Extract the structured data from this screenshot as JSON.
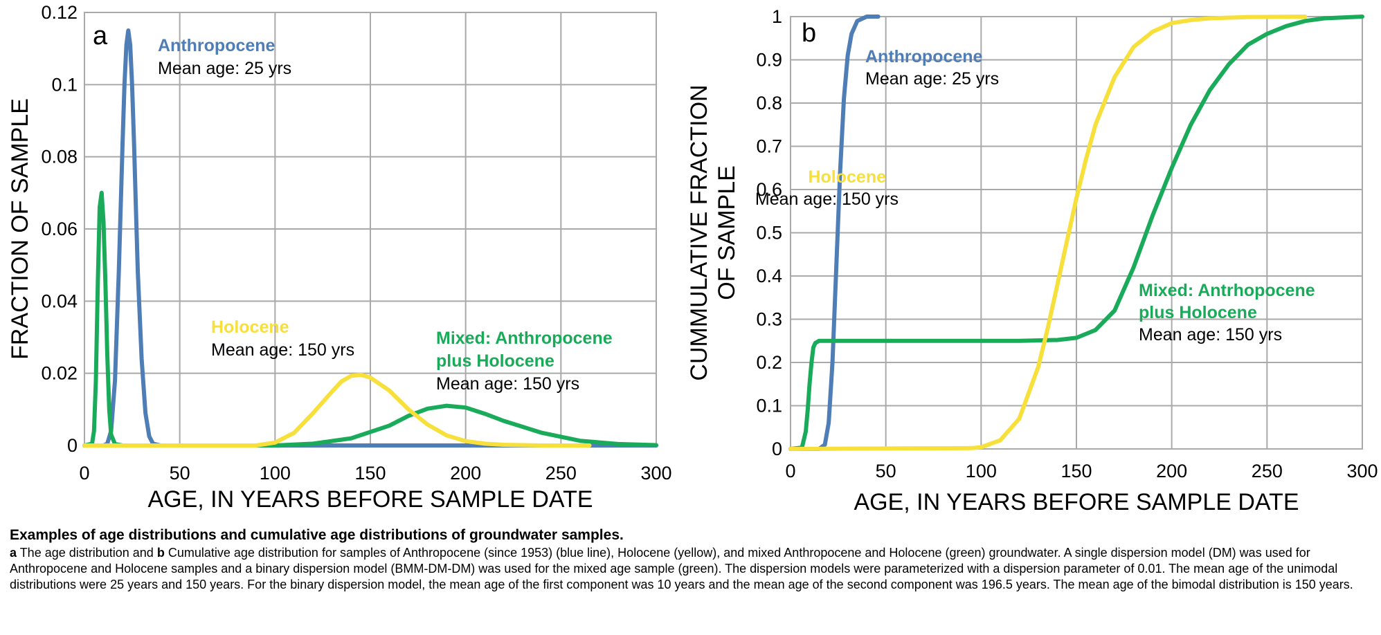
{
  "colors": {
    "anthropocene": "#4f7db5",
    "holocene": "#f7e03c",
    "mixed": "#1aab5a",
    "grid": "#a9a9a9"
  },
  "chart_data": [
    {
      "type": "line",
      "panel_label": "a",
      "xlabel": "AGE, IN YEARS BEFORE SAMPLE DATE",
      "ylabel": "FRACTION OF SAMPLE",
      "xlim": [
        0,
        300
      ],
      "ylim": [
        0,
        0.12
      ],
      "xticks": [
        0,
        50,
        100,
        150,
        200,
        250,
        300
      ],
      "yticks": [
        0,
        0.02,
        0.04,
        0.06,
        0.08,
        0.1,
        0.12
      ],
      "grid": true,
      "series": [
        {
          "key": "anthropocene",
          "x": [
            0,
            10,
            12,
            14,
            16,
            18,
            20,
            21,
            22,
            23,
            24,
            25,
            26,
            27,
            28,
            30,
            32,
            34,
            36,
            40,
            300
          ],
          "y": [
            0,
            0,
            0.0005,
            0.004,
            0.018,
            0.048,
            0.084,
            0.1,
            0.111,
            0.115,
            0.111,
            0.1,
            0.084,
            0.066,
            0.048,
            0.024,
            0.009,
            0.0025,
            0.0005,
            0,
            0
          ]
        },
        {
          "key": "mixed",
          "x": [
            0,
            4,
            5,
            6,
            7,
            8,
            9,
            10,
            11,
            12,
            13,
            14,
            16,
            20,
            100,
            120,
            140,
            160,
            170,
            180,
            190,
            200,
            210,
            220,
            240,
            260,
            280,
            300
          ],
          "y": [
            0,
            0.0005,
            0.004,
            0.018,
            0.045,
            0.066,
            0.07,
            0.062,
            0.045,
            0.025,
            0.01,
            0.003,
            0.0004,
            0,
            0,
            0.0005,
            0.002,
            0.0055,
            0.0082,
            0.0102,
            0.011,
            0.0105,
            0.0088,
            0.0068,
            0.0035,
            0.0013,
            0.0004,
            0.0001
          ]
        },
        {
          "key": "holocene",
          "x": [
            0,
            90,
            100,
            110,
            120,
            130,
            135,
            140,
            145,
            150,
            160,
            170,
            180,
            190,
            200,
            210,
            220,
            240,
            265
          ],
          "y": [
            0,
            0,
            0.0008,
            0.0035,
            0.009,
            0.015,
            0.0178,
            0.0193,
            0.0196,
            0.0188,
            0.0152,
            0.01,
            0.0058,
            0.0028,
            0.0012,
            0.0005,
            0.0002,
            0,
            0
          ]
        }
      ],
      "annotations": [
        {
          "key": "anthropocene",
          "title": "Anthropocene",
          "lines": [
            "Mean age: 25 yrs"
          ]
        },
        {
          "key": "holocene",
          "title": "Holocene",
          "lines": [
            "Mean age: 150 yrs"
          ]
        },
        {
          "key": "mixed",
          "title": "Mixed: Anthropocene\nplus Holocene",
          "lines": [
            "Mean age: 150 yrs"
          ]
        }
      ]
    },
    {
      "type": "line",
      "panel_label": "b",
      "xlabel": "AGE,  IN YEARS BEFORE SAMPLE DATE",
      "ylabel": "CUMMULATIVE  FRACTION\nOF SAMPLE",
      "xlim": [
        0,
        300
      ],
      "ylim": [
        0,
        1
      ],
      "xticks": [
        0,
        50,
        100,
        150,
        200,
        250,
        300
      ],
      "yticks": [
        0,
        0.1,
        0.2,
        0.3,
        0.4,
        0.5,
        0.6,
        0.7,
        0.8,
        0.9,
        1
      ],
      "grid": true,
      "series": [
        {
          "key": "anthropocene",
          "x": [
            0,
            15,
            18,
            20,
            22,
            24,
            26,
            28,
            30,
            32,
            35,
            40,
            46
          ],
          "y": [
            0,
            0,
            0.01,
            0.06,
            0.2,
            0.42,
            0.64,
            0.81,
            0.91,
            0.96,
            0.99,
            1,
            1
          ]
        },
        {
          "key": "mixed",
          "x": [
            0,
            6,
            8,
            9,
            10,
            11,
            12,
            13,
            15,
            20,
            100,
            120,
            140,
            150,
            160,
            170,
            180,
            190,
            200,
            210,
            220,
            230,
            240,
            250,
            260,
            270,
            280,
            300
          ],
          "y": [
            0,
            0.003,
            0.04,
            0.09,
            0.15,
            0.2,
            0.235,
            0.245,
            0.25,
            0.25,
            0.25,
            0.25,
            0.252,
            0.257,
            0.275,
            0.32,
            0.42,
            0.54,
            0.65,
            0.75,
            0.83,
            0.89,
            0.935,
            0.96,
            0.978,
            0.99,
            0.996,
            1
          ]
        },
        {
          "key": "holocene",
          "x": [
            0,
            95,
            100,
            110,
            120,
            130,
            135,
            140,
            145,
            150,
            155,
            160,
            170,
            180,
            190,
            200,
            210,
            220,
            240,
            270
          ],
          "y": [
            0,
            0.002,
            0.004,
            0.02,
            0.07,
            0.19,
            0.28,
            0.38,
            0.48,
            0.58,
            0.67,
            0.75,
            0.86,
            0.93,
            0.965,
            0.985,
            0.992,
            0.996,
            0.999,
            1
          ]
        }
      ],
      "annotations": [
        {
          "key": "anthropocene",
          "title": "Anthropocene",
          "lines": [
            "Mean age: 25 yrs"
          ]
        },
        {
          "key": "holocene",
          "title": "Holocene",
          "lines": [
            "Mean age: 150 yrs"
          ]
        },
        {
          "key": "mixed",
          "title": "Mixed: Antrhopocene\nplus Holocene",
          "lines": [
            "Mean age: 150 yrs"
          ]
        }
      ]
    }
  ],
  "caption": {
    "title": "Examples of age distributions and cumulative age distributions of groundwater samples.",
    "label_a": "a",
    "text_a": " The age distribution and ",
    "label_b": "b",
    "text_b": " Cumulative age distribution for samples of Anthropocene (since 1953) (blue line), Holocene (yellow), and mixed Anthropocene and Holocene (green) groundwater. A single dispersion model (DM) was used for Anthropocene and Holocene samples and a binary dispersion model (BMM-DM-DM) was used for the mixed age sample (green). The dispersion models were parameterized with a dispersion parameter of 0.01. The mean age of the unimodal distributions were 25 years and 150 years. For the binary dispersion model, the mean age of the first component was 10 years and the mean age of the second component was 196.5 years. The mean age of the bimodal distribution is 150 years."
  }
}
